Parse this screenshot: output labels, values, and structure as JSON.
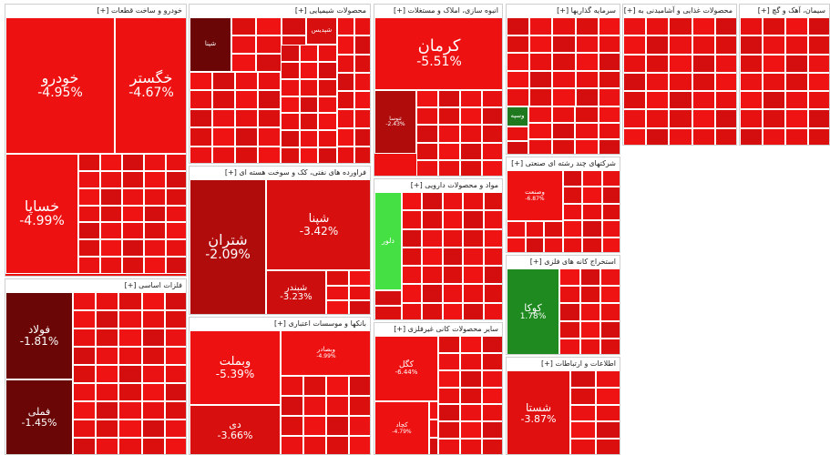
{
  "chart_data": {
    "type": "treemap",
    "sectors": [
      {
        "title": "خودرو و ساخت قطعات [+]",
        "color": "#ee1111",
        "tiles": [
          {
            "name": "خودرو",
            "change": "-4.95%",
            "color": "#ee1111"
          },
          {
            "name": "خگستر",
            "change": "-4.67%",
            "color": "#ee1111"
          },
          {
            "name": "خساپا",
            "change": "-4.99%",
            "color": "#ee1111"
          }
        ]
      },
      {
        "title": "محصولات شیمیایی [+]",
        "color": "#d80f0f",
        "tiles": [
          {
            "name": "شپنا",
            "change": "",
            "color": "#6a0606"
          },
          {
            "name": "شپدیس",
            "change": "",
            "color": "#d80f0f"
          }
        ]
      },
      {
        "title": "انبوه سازی، املاک و مستغلات [+]",
        "color": "#ee1111",
        "tiles": [
          {
            "name": "کرمان",
            "change": "-5.51%",
            "color": "#ee1111"
          },
          {
            "name": "ثنوسا",
            "change": "-2.43%",
            "color": "#b00c0c"
          }
        ]
      },
      {
        "title": "سرمایه گذاریها [+]",
        "color": "#e01010",
        "tiles": [
          {
            "name": "وسپه",
            "change": "",
            "color": "#1f7a1f"
          }
        ]
      },
      {
        "title": "محصولات غذایی و آشامیدنی به [+]",
        "color": "#e51010",
        "tiles": []
      },
      {
        "title": "سیمان، آهک و گچ [+]",
        "color": "#e51010",
        "tiles": []
      },
      {
        "title": "فراورده های نفتی، کک و سوخت هسته ای [+]",
        "color": "#c80e0e",
        "tiles": [
          {
            "name": "شتران",
            "change": "-2.09%",
            "color": "#b00c0c"
          },
          {
            "name": "شپنا",
            "change": "-3.42%",
            "color": "#d80f0f"
          },
          {
            "name": "شبندر",
            "change": "-3.23%",
            "color": "#cc0e0e"
          }
        ]
      },
      {
        "title": "مواد و محصولات دارویی [+]",
        "color": "#e01010",
        "tiles": [
          {
            "name": "دلور",
            "change": "",
            "color": "#44e044"
          }
        ]
      },
      {
        "title": "شرکتهای چند رشته ای صنعتی [+]",
        "color": "#e51010",
        "tiles": [
          {
            "name": "وصنعت",
            "change": "-6.87%",
            "color": "#ee1111"
          }
        ]
      },
      {
        "title": "فلزات اساسی [+]",
        "color": "#d00f0f",
        "tiles": [
          {
            "name": "فولاد",
            "change": "-1.81%",
            "color": "#6a0606"
          },
          {
            "name": "فملی",
            "change": "-1.45%",
            "color": "#6a0606"
          }
        ]
      },
      {
        "title": "بانکها و موسسات اعتباری [+]",
        "color": "#ee1111",
        "tiles": [
          {
            "name": "وبملت",
            "change": "-5.39%",
            "color": "#ee1111"
          },
          {
            "name": "وبصادر",
            "change": "-4.99%",
            "color": "#ee1111"
          },
          {
            "name": "دی",
            "change": "-3.66%",
            "color": "#d80f0f"
          }
        ]
      },
      {
        "title": "سایر محصولات کانی غیرفلزی [+]",
        "color": "#e01010",
        "tiles": [
          {
            "name": "کگل",
            "change": "-6.44%",
            "color": "#ee1111"
          },
          {
            "name": "کچاد",
            "change": "-4.79%",
            "color": "#ee1111"
          }
        ]
      },
      {
        "title": "استخراج کانه های فلزی [+]",
        "color": "#e01010",
        "tiles": [
          {
            "name": "کوکا",
            "change": "1.78%",
            "color": "#1f8a1f"
          }
        ]
      },
      {
        "title": "اطلاعات و ارتباطات [+]",
        "color": "#e51010",
        "tiles": [
          {
            "name": "شستا",
            "change": "-3.87%",
            "color": "#e01010"
          }
        ]
      }
    ]
  }
}
